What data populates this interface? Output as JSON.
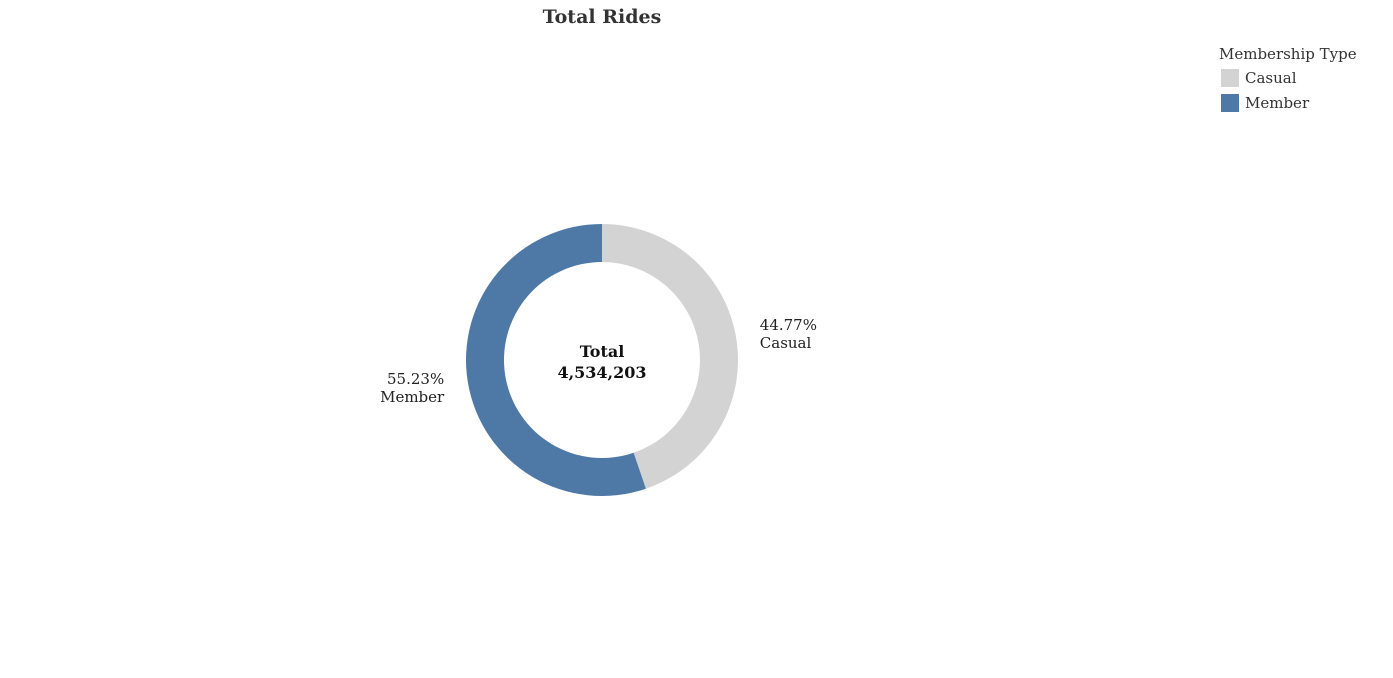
{
  "chart_data": {
    "type": "pie",
    "title": "Total Rides",
    "donut": true,
    "legend_title": "Membership Type",
    "legend_position": "top-right",
    "categories": [
      "Casual",
      "Member"
    ],
    "values": [
      44.77,
      55.23
    ],
    "value_labels": [
      "44.77%",
      "55.23%"
    ],
    "colors": [
      "#d3d3d3",
      "#4e79a7"
    ],
    "center_label": {
      "title": "Total",
      "value": "4,534,203"
    }
  }
}
